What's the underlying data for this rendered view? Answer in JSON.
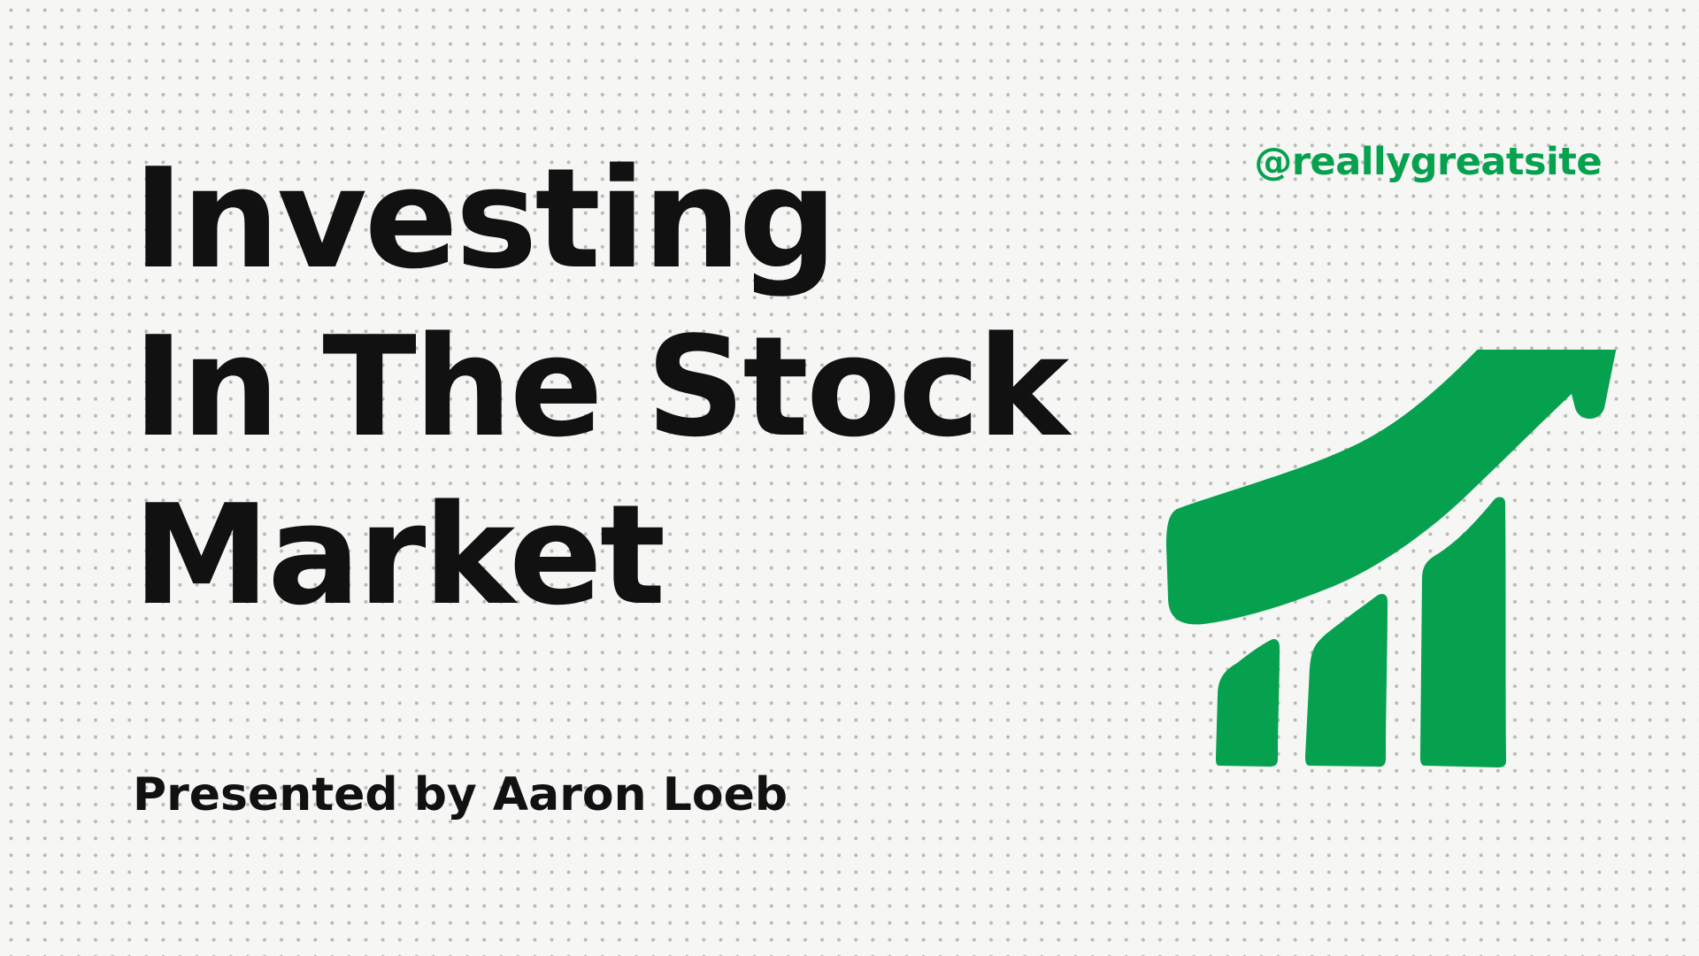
{
  "slide": {
    "handle": "@reallygreatsite",
    "title_lines": [
      "Investing",
      "In The Stock",
      "Market"
    ],
    "presenter": "Presented by Aaron Loeb"
  },
  "illustration": {
    "icon": "growth-chart-arrow-icon",
    "accent_color": "#06a14f"
  },
  "colors": {
    "background": "#f6f6f4",
    "text": "#111111",
    "accent": "#06a14f"
  }
}
